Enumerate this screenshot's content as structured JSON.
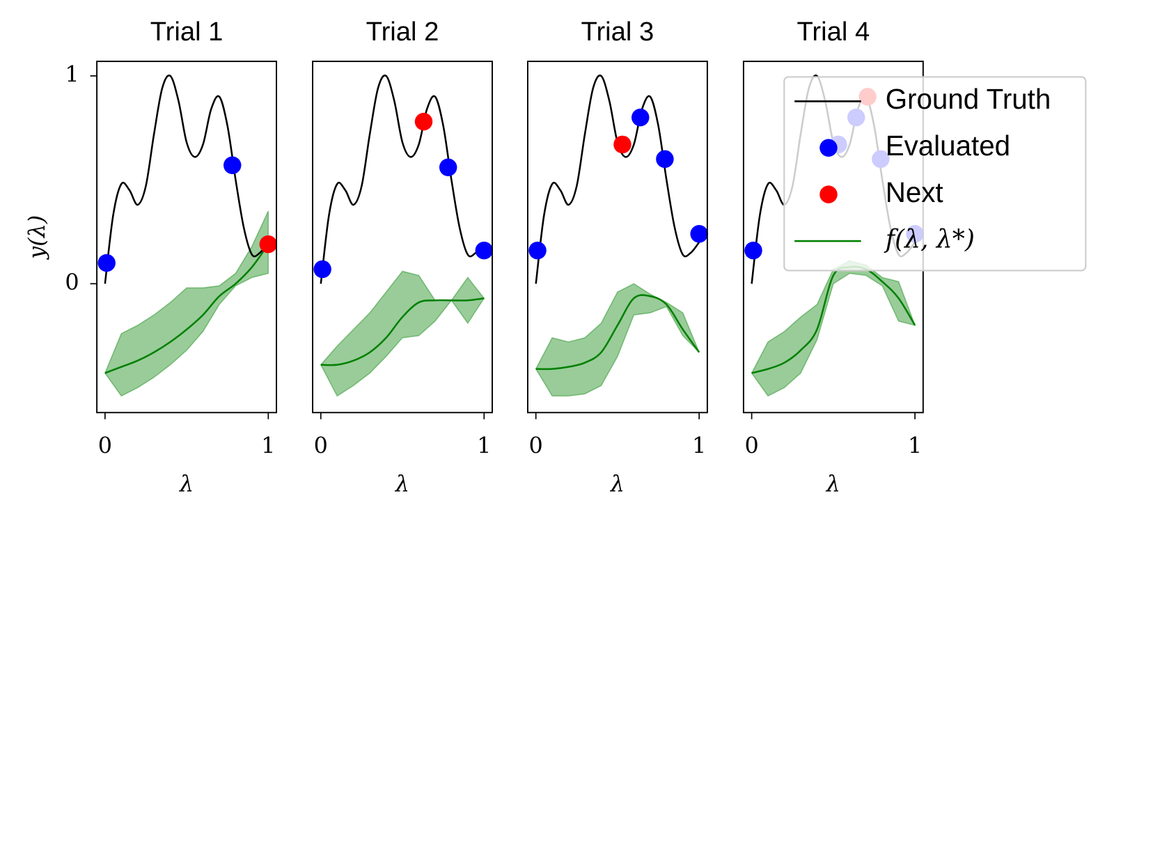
{
  "chart_data": [
    {
      "type": "line",
      "title": "Trial 1",
      "xlabel": "λ",
      "ylabel": "y(λ)",
      "xlim": [
        -0.05,
        1.05
      ],
      "ylim": [
        -0.62,
        1.07
      ],
      "xticks": [
        0,
        1
      ],
      "yticks": [
        0,
        1
      ],
      "series": [
        {
          "type": "line",
          "color": "#000000",
          "x": [
            0,
            0.05,
            0.1,
            0.15,
            0.2,
            0.25,
            0.3,
            0.35,
            0.4,
            0.45,
            0.5,
            0.55,
            0.6,
            0.65,
            0.7,
            0.75,
            0.8,
            0.85,
            0.9,
            0.95,
            1
          ],
          "values": [
            0,
            0.33,
            0.48,
            0.45,
            0.38,
            0.47,
            0.72,
            0.94,
            1.0,
            0.88,
            0.68,
            0.61,
            0.67,
            0.84,
            0.9,
            0.76,
            0.5,
            0.27,
            0.14,
            0.15,
            0.2
          ]
        },
        {
          "type": "scatter",
          "color": "#0000ff",
          "x": [
            0.01,
            0.78
          ],
          "values": [
            0.1,
            0.57
          ]
        },
        {
          "type": "scatter",
          "color": "#ff0000",
          "x": [
            1.0
          ],
          "values": [
            0.19
          ]
        },
        {
          "type": "line",
          "color": "#008000",
          "x": [
            0,
            0.1,
            0.2,
            0.3,
            0.4,
            0.5,
            0.6,
            0.7,
            0.8,
            0.9,
            1
          ],
          "values": [
            -0.43,
            -0.4,
            -0.37,
            -0.33,
            -0.28,
            -0.22,
            -0.15,
            -0.06,
            0.0,
            0.08,
            0.19
          ],
          "lower": [
            -0.43,
            -0.54,
            -0.5,
            -0.45,
            -0.39,
            -0.32,
            -0.23,
            -0.1,
            -0.01,
            0.03,
            0.05
          ],
          "upper": [
            -0.43,
            -0.24,
            -0.2,
            -0.15,
            -0.09,
            -0.02,
            -0.02,
            -0.01,
            0.05,
            0.18,
            0.35
          ]
        }
      ]
    },
    {
      "type": "line",
      "title": "Trial 2",
      "xlabel": "λ",
      "xlim": [
        -0.05,
        1.05
      ],
      "ylim": [
        -0.62,
        1.07
      ],
      "xticks": [
        0,
        1
      ],
      "series": [
        {
          "type": "line",
          "color": "#000000",
          "x": [
            0,
            0.05,
            0.1,
            0.15,
            0.2,
            0.25,
            0.3,
            0.35,
            0.4,
            0.45,
            0.5,
            0.55,
            0.6,
            0.65,
            0.7,
            0.75,
            0.8,
            0.85,
            0.9,
            0.95,
            1
          ],
          "values": [
            0,
            0.33,
            0.48,
            0.45,
            0.38,
            0.47,
            0.72,
            0.94,
            1.0,
            0.88,
            0.68,
            0.61,
            0.67,
            0.84,
            0.9,
            0.76,
            0.5,
            0.27,
            0.14,
            0.15,
            0.2
          ]
        },
        {
          "type": "scatter",
          "color": "#0000ff",
          "x": [
            0.01,
            0.78,
            1.0
          ],
          "values": [
            0.07,
            0.56,
            0.16
          ]
        },
        {
          "type": "scatter",
          "color": "#ff0000",
          "x": [
            0.63
          ],
          "values": [
            0.78
          ]
        },
        {
          "type": "line",
          "color": "#008000",
          "x": [
            0,
            0.1,
            0.2,
            0.3,
            0.4,
            0.5,
            0.6,
            0.7,
            0.8,
            0.9,
            1
          ],
          "values": [
            -0.39,
            -0.39,
            -0.37,
            -0.33,
            -0.26,
            -0.16,
            -0.09,
            -0.08,
            -0.08,
            -0.08,
            -0.07
          ],
          "lower": [
            -0.39,
            -0.54,
            -0.49,
            -0.43,
            -0.35,
            -0.26,
            -0.25,
            -0.18,
            -0.08,
            -0.19,
            -0.07
          ],
          "upper": [
            -0.39,
            -0.3,
            -0.22,
            -0.14,
            -0.04,
            0.06,
            0.04,
            -0.08,
            -0.08,
            0.03,
            -0.07
          ]
        }
      ]
    },
    {
      "type": "line",
      "title": "Trial 3",
      "xlabel": "λ",
      "xlim": [
        -0.05,
        1.05
      ],
      "ylim": [
        -0.62,
        1.07
      ],
      "xticks": [
        0,
        1
      ],
      "series": [
        {
          "type": "line",
          "color": "#000000",
          "x": [
            0,
            0.05,
            0.1,
            0.15,
            0.2,
            0.25,
            0.3,
            0.35,
            0.4,
            0.45,
            0.5,
            0.55,
            0.6,
            0.65,
            0.7,
            0.75,
            0.8,
            0.85,
            0.9,
            0.95,
            1
          ],
          "values": [
            0,
            0.33,
            0.48,
            0.45,
            0.38,
            0.47,
            0.72,
            0.94,
            1.0,
            0.88,
            0.68,
            0.61,
            0.67,
            0.84,
            0.9,
            0.76,
            0.5,
            0.27,
            0.14,
            0.15,
            0.2
          ]
        },
        {
          "type": "scatter",
          "color": "#0000ff",
          "x": [
            0.01,
            0.64,
            0.79,
            1.0
          ],
          "values": [
            0.16,
            0.8,
            0.6,
            0.24
          ]
        },
        {
          "type": "scatter",
          "color": "#ff0000",
          "x": [
            0.53
          ],
          "values": [
            0.67
          ]
        },
        {
          "type": "line",
          "color": "#008000",
          "x": [
            0,
            0.1,
            0.2,
            0.3,
            0.4,
            0.5,
            0.6,
            0.7,
            0.8,
            0.9,
            1
          ],
          "values": [
            -0.41,
            -0.41,
            -0.4,
            -0.38,
            -0.33,
            -0.2,
            -0.07,
            -0.06,
            -0.1,
            -0.22,
            -0.33
          ],
          "lower": [
            -0.41,
            -0.54,
            -0.54,
            -0.53,
            -0.49,
            -0.35,
            -0.15,
            -0.14,
            -0.11,
            -0.25,
            -0.33
          ],
          "upper": [
            -0.41,
            -0.26,
            -0.28,
            -0.26,
            -0.19,
            -0.04,
            0.0,
            -0.05,
            -0.09,
            -0.14,
            -0.33
          ]
        }
      ]
    },
    {
      "type": "line",
      "title": "Trial 4",
      "xlabel": "λ",
      "legend": "upper right",
      "xlim": [
        -0.05,
        1.05
      ],
      "ylim": [
        -0.62,
        1.07
      ],
      "xticks": [
        0,
        1
      ],
      "series": [
        {
          "name": "Ground Truth",
          "type": "line",
          "color": "#000000",
          "x": [
            0,
            0.05,
            0.1,
            0.15,
            0.2,
            0.25,
            0.3,
            0.35,
            0.4,
            0.45,
            0.5,
            0.55,
            0.6,
            0.65,
            0.7,
            0.75,
            0.8,
            0.85,
            0.9,
            0.95,
            1
          ],
          "values": [
            0,
            0.33,
            0.48,
            0.45,
            0.38,
            0.47,
            0.72,
            0.94,
            1.0,
            0.88,
            0.68,
            0.61,
            0.67,
            0.84,
            0.9,
            0.76,
            0.5,
            0.27,
            0.14,
            0.15,
            0.2
          ]
        },
        {
          "name": "Evaluated",
          "type": "scatter",
          "color": "#0000ff",
          "x": [
            0.01,
            0.53,
            0.64,
            0.79,
            1.0
          ],
          "values": [
            0.16,
            0.67,
            0.8,
            0.6,
            0.24
          ]
        },
        {
          "name": "Next",
          "type": "scatter",
          "color": "#ff0000",
          "x": [
            0.71
          ],
          "values": [
            0.9
          ]
        },
        {
          "name": "f(λ, λ*)",
          "type": "line",
          "color": "#008000",
          "x": [
            0,
            0.1,
            0.2,
            0.3,
            0.4,
            0.5,
            0.6,
            0.7,
            0.8,
            0.9,
            1
          ],
          "values": [
            -0.43,
            -0.41,
            -0.38,
            -0.32,
            -0.22,
            0.04,
            0.08,
            0.07,
            0.01,
            -0.07,
            -0.2
          ],
          "lower": [
            -0.43,
            -0.54,
            -0.5,
            -0.43,
            -0.27,
            0.0,
            0.05,
            0.04,
            -0.01,
            -0.18,
            -0.2
          ],
          "upper": [
            -0.43,
            -0.28,
            -0.23,
            -0.16,
            -0.1,
            0.07,
            0.11,
            0.09,
            0.03,
            0.01,
            -0.2
          ]
        }
      ]
    }
  ]
}
